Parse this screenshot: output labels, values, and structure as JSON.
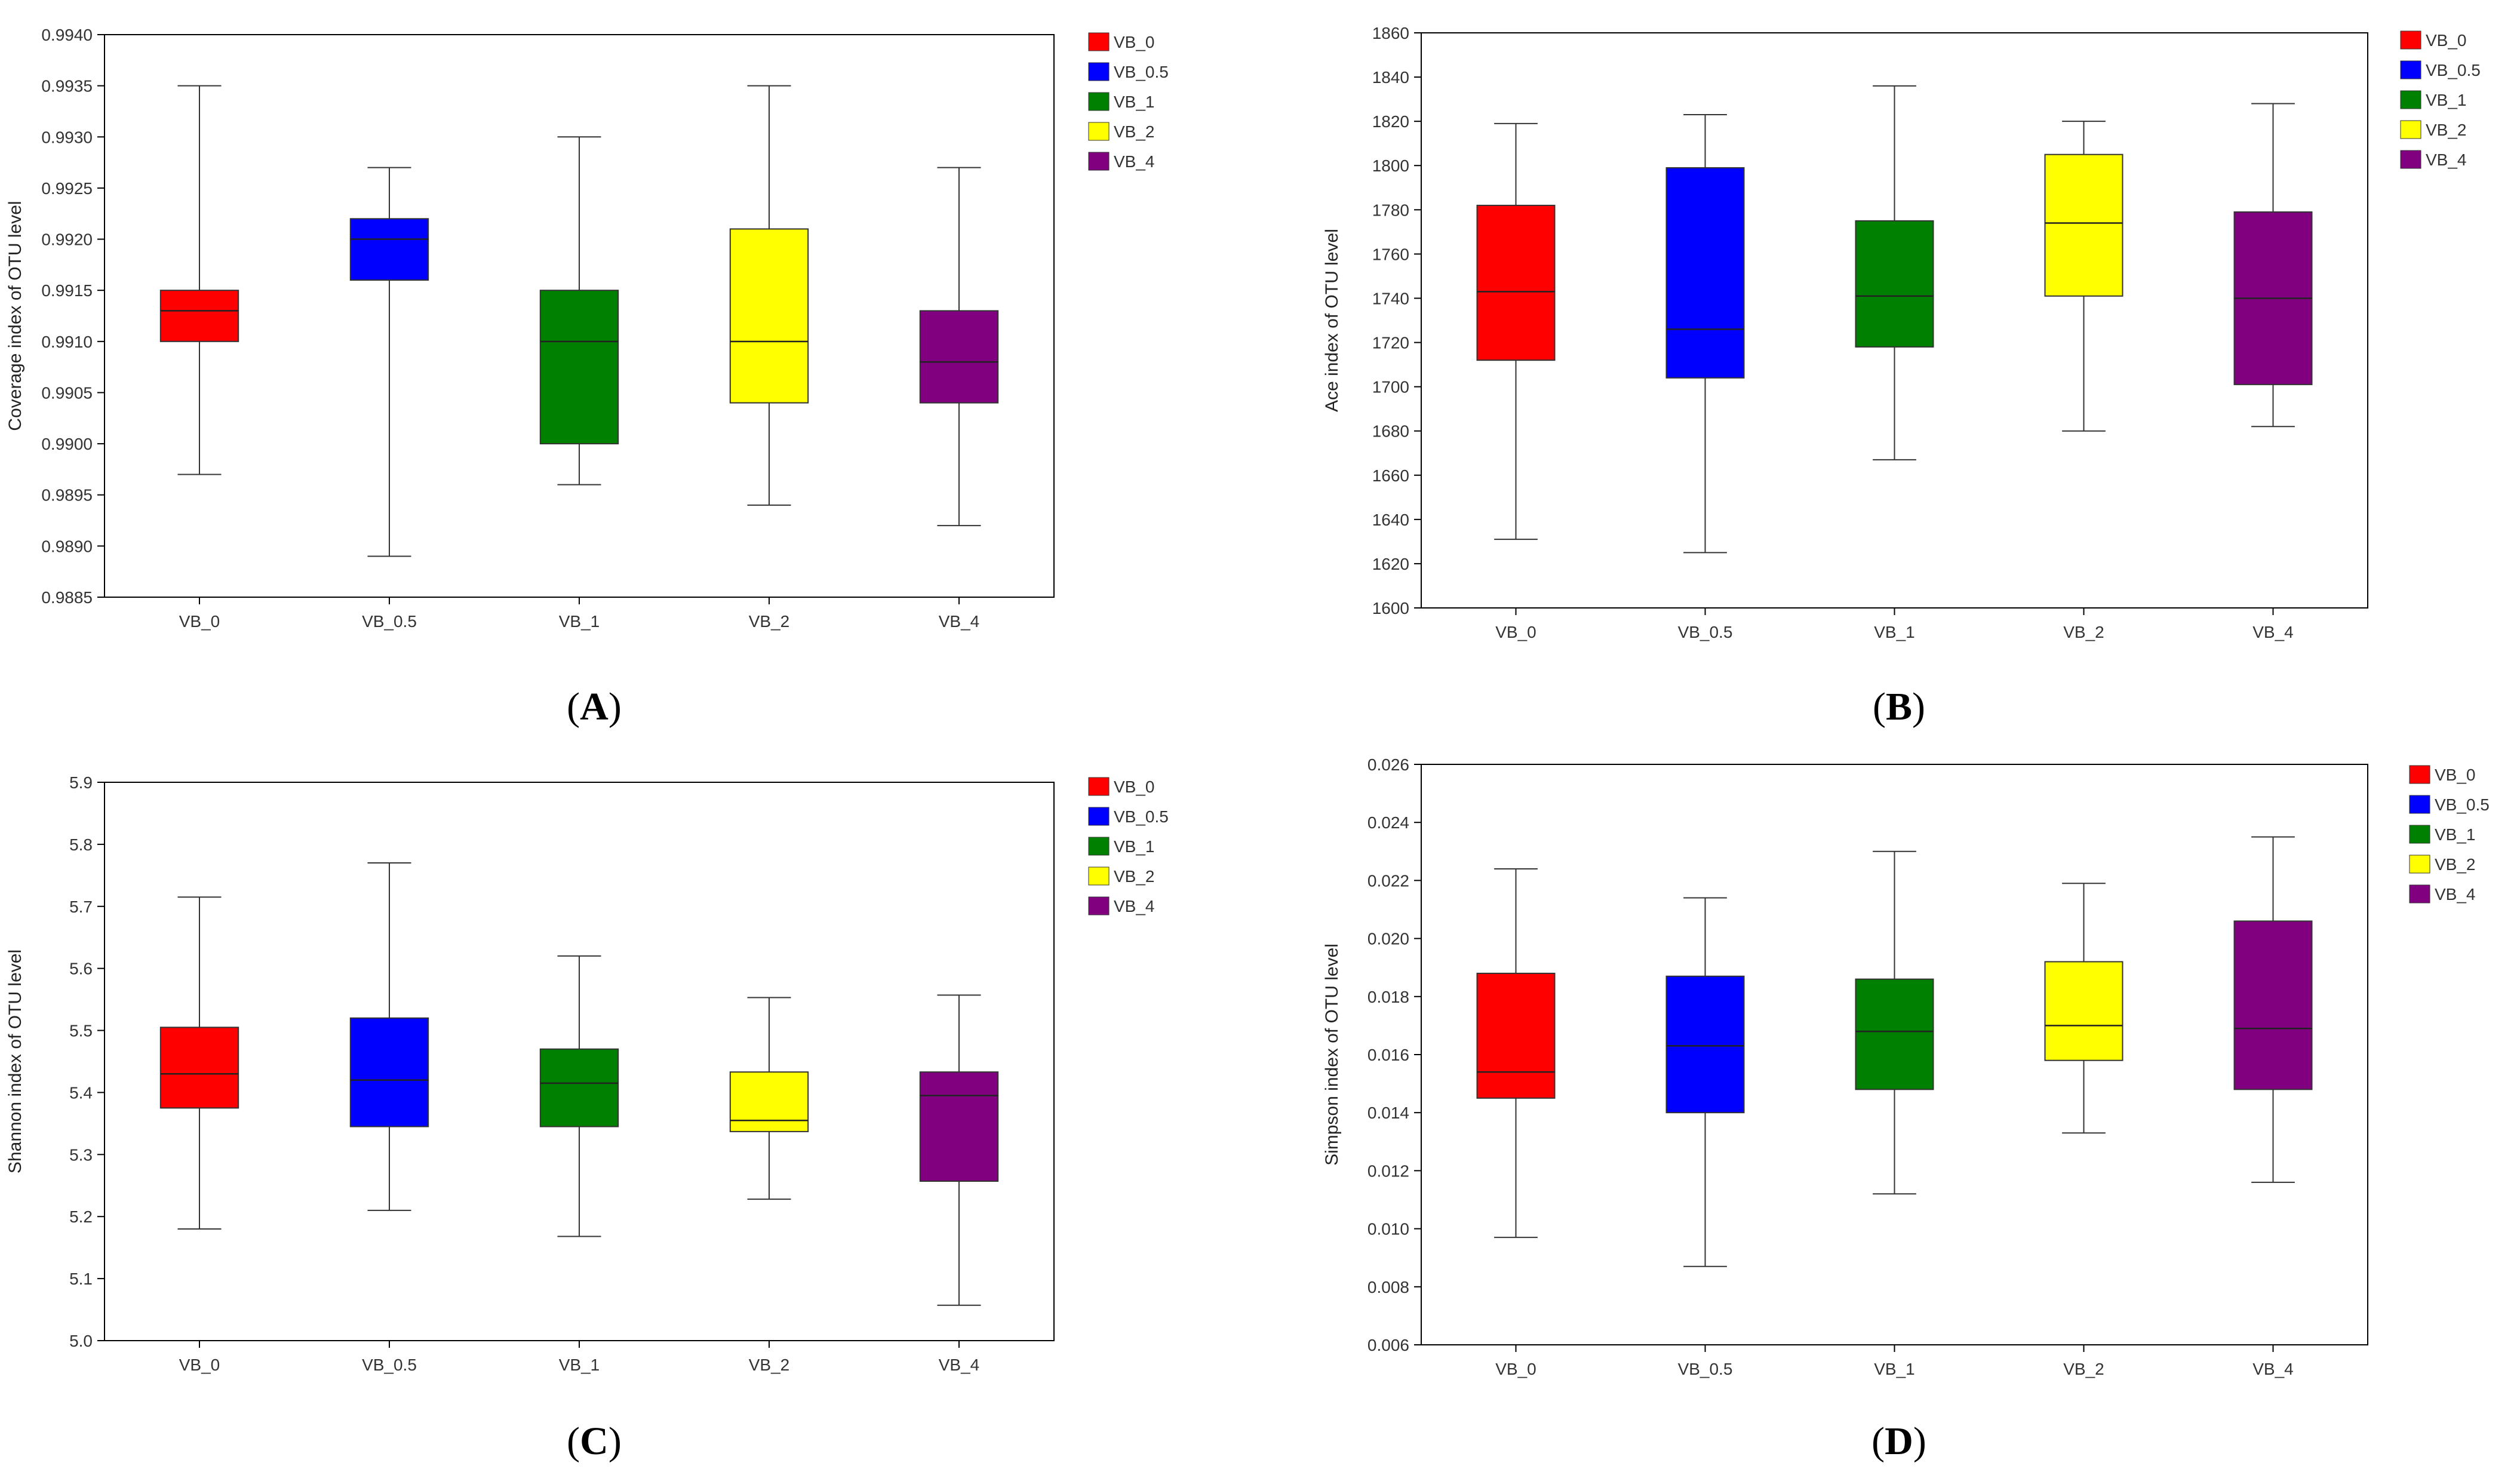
{
  "colors": {
    "VB_0": "#ff0000",
    "VB_0.5": "#0000ff",
    "VB_1": "#008000",
    "VB_2": "#ffff00",
    "VB_4": "#800080"
  },
  "chart_data": [
    {
      "panel": "A",
      "type": "box",
      "caption": {
        "open": "(",
        "letter": "A",
        "close": ")"
      },
      "ylabel": "Coverage index of OTU level",
      "xlabel": "",
      "ylim": [
        0.9885,
        0.994
      ],
      "yticks": [
        "0.9885",
        "0.9890",
        "0.9895",
        "0.9900",
        "0.9905",
        "0.9910",
        "0.9915",
        "0.9920",
        "0.9925",
        "0.9930",
        "0.9935",
        "0.9940"
      ],
      "categories": [
        "VB_0",
        "VB_0.5",
        "VB_1",
        "VB_2",
        "VB_4"
      ],
      "legend": [
        "VB_0",
        "VB_0.5",
        "VB_1",
        "VB_2",
        "VB_4"
      ],
      "legend_position": "right",
      "series": [
        {
          "name": "VB_0",
          "min": 0.9897,
          "q1": 0.991,
          "median": 0.9913,
          "q3": 0.9915,
          "max": 0.9935
        },
        {
          "name": "VB_0.5",
          "min": 0.9889,
          "q1": 0.9916,
          "median": 0.992,
          "q3": 0.9922,
          "max": 0.9927
        },
        {
          "name": "VB_1",
          "min": 0.9896,
          "q1": 0.99,
          "median": 0.991,
          "q3": 0.9915,
          "max": 0.993
        },
        {
          "name": "VB_2",
          "min": 0.9894,
          "q1": 0.9904,
          "median": 0.991,
          "q3": 0.9921,
          "max": 0.9935
        },
        {
          "name": "VB_4",
          "min": 0.9892,
          "q1": 0.9904,
          "median": 0.9908,
          "q3": 0.9913,
          "max": 0.9927
        }
      ]
    },
    {
      "panel": "B",
      "type": "box",
      "caption": {
        "open": "(",
        "letter": "B",
        "close": ")"
      },
      "ylabel": "Ace index of OTU level",
      "xlabel": "",
      "ylim": [
        1600,
        1860
      ],
      "yticks": [
        "1600",
        "1620",
        "1640",
        "1660",
        "1680",
        "1700",
        "1720",
        "1740",
        "1760",
        "1780",
        "1800",
        "1820",
        "1840",
        "1860"
      ],
      "categories": [
        "VB_0",
        "VB_0.5",
        "VB_1",
        "VB_2",
        "VB_4"
      ],
      "legend": [
        "VB_0",
        "VB_0.5",
        "VB_1",
        "VB_2",
        "VB_4"
      ],
      "legend_position": "right",
      "series": [
        {
          "name": "VB_0",
          "min": 1631,
          "q1": 1712,
          "median": 1743,
          "q3": 1782,
          "max": 1819
        },
        {
          "name": "VB_0.5",
          "min": 1625,
          "q1": 1704,
          "median": 1726,
          "q3": 1799,
          "max": 1823
        },
        {
          "name": "VB_1",
          "min": 1667,
          "q1": 1718,
          "median": 1741,
          "q3": 1775,
          "max": 1836
        },
        {
          "name": "VB_2",
          "min": 1680,
          "q1": 1741,
          "median": 1774,
          "q3": 1805,
          "max": 1820
        },
        {
          "name": "VB_4",
          "min": 1682,
          "q1": 1701,
          "median": 1740,
          "q3": 1779,
          "max": 1828
        }
      ]
    },
    {
      "panel": "C",
      "type": "box",
      "caption": {
        "open": "(",
        "letter": "C",
        "close": ")"
      },
      "ylabel": "Shannon index of OTU level",
      "xlabel": "",
      "ylim": [
        5.0,
        5.9
      ],
      "yticks": [
        "5.0",
        "5.1",
        "5.2",
        "5.3",
        "5.4",
        "5.5",
        "5.6",
        "5.7",
        "5.8",
        "5.9"
      ],
      "categories": [
        "VB_0",
        "VB_0.5",
        "VB_1",
        "VB_2",
        "VB_4"
      ],
      "legend": [
        "VB_0",
        "VB_0.5",
        "VB_1",
        "VB_2",
        "VB_4"
      ],
      "legend_position": "right",
      "series": [
        {
          "name": "VB_0",
          "min": 5.18,
          "q1": 5.375,
          "median": 5.43,
          "q3": 5.505,
          "max": 5.715
        },
        {
          "name": "VB_0.5",
          "min": 5.21,
          "q1": 5.345,
          "median": 5.42,
          "q3": 5.52,
          "max": 5.77
        },
        {
          "name": "VB_1",
          "min": 5.168,
          "q1": 5.345,
          "median": 5.415,
          "q3": 5.47,
          "max": 5.62
        },
        {
          "name": "VB_2",
          "min": 5.228,
          "q1": 5.337,
          "median": 5.355,
          "q3": 5.433,
          "max": 5.553
        },
        {
          "name": "VB_4",
          "min": 5.057,
          "q1": 5.257,
          "median": 5.395,
          "q3": 5.433,
          "max": 5.557
        }
      ]
    },
    {
      "panel": "D",
      "type": "box",
      "caption": {
        "open": "(",
        "letter": "D",
        "close": ")"
      },
      "ylabel": "Simpson index of OTU level",
      "xlabel": "",
      "ylim": [
        0.006,
        0.026
      ],
      "yticks": [
        "0.006",
        "0.008",
        "0.010",
        "0.012",
        "0.014",
        "0.016",
        "0.018",
        "0.020",
        "0.022",
        "0.024",
        "0.026"
      ],
      "categories": [
        "VB_0",
        "VB_0.5",
        "VB_1",
        "VB_2",
        "VB_4"
      ],
      "legend": [
        "VB_0",
        "VB_0.5",
        "VB_1",
        "VB_2",
        "VB_4"
      ],
      "legend_position": "right",
      "series": [
        {
          "name": "VB_0",
          "min": 0.0097,
          "q1": 0.0145,
          "median": 0.0154,
          "q3": 0.0188,
          "max": 0.0224
        },
        {
          "name": "VB_0.5",
          "min": 0.0087,
          "q1": 0.014,
          "median": 0.0163,
          "q3": 0.0187,
          "max": 0.0214
        },
        {
          "name": "VB_1",
          "min": 0.0112,
          "q1": 0.0148,
          "median": 0.0168,
          "q3": 0.0186,
          "max": 0.023
        },
        {
          "name": "VB_2",
          "min": 0.0133,
          "q1": 0.0158,
          "median": 0.017,
          "q3": 0.0192,
          "max": 0.0219
        },
        {
          "name": "VB_4",
          "min": 0.0116,
          "q1": 0.0148,
          "median": 0.0169,
          "q3": 0.0206,
          "max": 0.0235
        }
      ]
    }
  ]
}
